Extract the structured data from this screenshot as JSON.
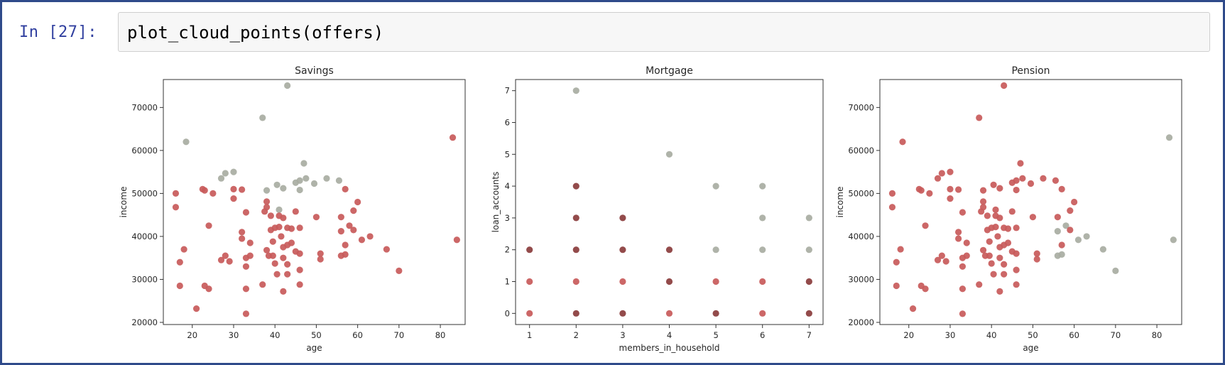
{
  "notebook": {
    "prompt": "In [27]:",
    "code": "plot_cloud_points(offers)"
  },
  "colors": {
    "red": "#c85a5a",
    "gray": "#a8aca2",
    "darkred": "#8a3c3c",
    "prompt_blue": "#303f9f",
    "border": "#2f4a8a"
  },
  "chart_data": [
    {
      "type": "scatter",
      "title": "Savings",
      "xlabel": "age",
      "ylabel": "income",
      "xlim": [
        13,
        86
      ],
      "ylim": [
        19500,
        76500
      ],
      "xticks": [
        20,
        30,
        40,
        50,
        60,
        70,
        80
      ],
      "yticks": [
        20000,
        30000,
        40000,
        50000,
        60000,
        70000
      ],
      "grid": false,
      "series": [
        {
          "color": "#a8aca2",
          "points": [
            [
              18.5,
              62000
            ],
            [
              27,
              53500
            ],
            [
              28,
              54700
            ],
            [
              30,
              55000
            ],
            [
              37,
              67600
            ],
            [
              38,
              50700
            ],
            [
              40.5,
              52000
            ],
            [
              42,
              51200
            ],
            [
              43,
              75100
            ],
            [
              45,
              52500
            ],
            [
              46,
              53000
            ],
            [
              46,
              50800
            ],
            [
              47,
              57000
            ],
            [
              47.5,
              53500
            ],
            [
              49.5,
              52300
            ],
            [
              52.5,
              53500
            ],
            [
              55.5,
              53000
            ],
            [
              41,
              46200
            ]
          ]
        },
        {
          "color": "#c85a5a",
          "points": [
            [
              16,
              50000
            ],
            [
              16,
              46800
            ],
            [
              17,
              34000
            ],
            [
              17,
              28500
            ],
            [
              18,
              37000
            ],
            [
              21,
              23200
            ],
            [
              22.5,
              51000
            ],
            [
              23,
              28500
            ],
            [
              23,
              50700
            ],
            [
              24,
              27800
            ],
            [
              24,
              42500
            ],
            [
              25,
              50000
            ],
            [
              27,
              34500
            ],
            [
              28,
              35500
            ],
            [
              29,
              34200
            ],
            [
              30,
              48800
            ],
            [
              30,
              51000
            ],
            [
              32,
              50900
            ],
            [
              32,
              41000
            ],
            [
              32,
              39500
            ],
            [
              33,
              45600
            ],
            [
              33,
              35000
            ],
            [
              33,
              33000
            ],
            [
              33,
              27800
            ],
            [
              33,
              22000
            ],
            [
              34,
              38500
            ],
            [
              34,
              35500
            ],
            [
              37,
              28800
            ],
            [
              37.5,
              45800
            ],
            [
              38,
              48100
            ],
            [
              38,
              46800
            ],
            [
              38,
              36800
            ],
            [
              38.5,
              35500
            ],
            [
              39,
              44800
            ],
            [
              39,
              41500
            ],
            [
              39.5,
              38800
            ],
            [
              39.5,
              35500
            ],
            [
              40,
              33700
            ],
            [
              40,
              42000
            ],
            [
              40.5,
              31200
            ],
            [
              41,
              42200
            ],
            [
              41,
              44800
            ],
            [
              41.5,
              40000
            ],
            [
              42,
              44300
            ],
            [
              42,
              37500
            ],
            [
              42,
              35000
            ],
            [
              42,
              27200
            ],
            [
              43,
              42000
            ],
            [
              43,
              38000
            ],
            [
              43,
              33500
            ],
            [
              43,
              31200
            ],
            [
              44,
              38500
            ],
            [
              44,
              41800
            ],
            [
              45,
              45800
            ],
            [
              45,
              36500
            ],
            [
              46,
              28800
            ],
            [
              46,
              32200
            ],
            [
              46,
              36000
            ],
            [
              46,
              42000
            ],
            [
              50,
              44500
            ],
            [
              51,
              36000
            ],
            [
              51,
              34700
            ],
            [
              56,
              44500
            ],
            [
              56,
              41200
            ],
            [
              56,
              35500
            ],
            [
              57,
              51000
            ],
            [
              57,
              35800
            ],
            [
              57,
              38000
            ],
            [
              58,
              42500
            ],
            [
              59,
              46000
            ],
            [
              59,
              41500
            ],
            [
              60,
              48000
            ],
            [
              61,
              39200
            ],
            [
              63,
              40000
            ],
            [
              67,
              37000
            ],
            [
              70,
              32000
            ],
            [
              83,
              63000
            ],
            [
              84,
              39200
            ]
          ]
        }
      ]
    },
    {
      "type": "scatter",
      "title": "Mortgage",
      "xlabel": "members_in_household",
      "ylabel": "loan_accounts",
      "xlim": [
        0.7,
        7.3
      ],
      "ylim": [
        -0.35,
        7.35
      ],
      "xticks": [
        1,
        2,
        3,
        4,
        5,
        6,
        7
      ],
      "yticks": [
        0,
        1,
        2,
        3,
        4,
        5,
        6,
        7
      ],
      "grid": false,
      "series": [
        {
          "color": "#a8aca2",
          "points": [
            [
              2,
              7
            ],
            [
              4,
              5
            ],
            [
              5,
              4
            ],
            [
              6,
              4
            ],
            [
              6,
              3
            ],
            [
              7,
              3
            ],
            [
              5,
              2
            ],
            [
              6,
              2
            ],
            [
              7,
              2
            ]
          ]
        },
        {
          "color": "#c85a5a",
          "points": [
            [
              1,
              1
            ],
            [
              1,
              0
            ],
            [
              2,
              1
            ],
            [
              3,
              1
            ],
            [
              4,
              0
            ],
            [
              5,
              1
            ],
            [
              6,
              1
            ],
            [
              6,
              0
            ]
          ]
        },
        {
          "color": "#8a3c3c",
          "points": [
            [
              1,
              2
            ],
            [
              2,
              2
            ],
            [
              2,
              3
            ],
            [
              2,
              4
            ],
            [
              2,
              0
            ],
            [
              3,
              3
            ],
            [
              3,
              2
            ],
            [
              3,
              0
            ],
            [
              4,
              2
            ],
            [
              4,
              1
            ],
            [
              5,
              0
            ],
            [
              7,
              1
            ],
            [
              7,
              0
            ]
          ]
        }
      ]
    },
    {
      "type": "scatter",
      "title": "Pension",
      "xlabel": "age",
      "ylabel": "income",
      "xlim": [
        13,
        86
      ],
      "ylim": [
        19500,
        76500
      ],
      "xticks": [
        20,
        30,
        40,
        50,
        60,
        70,
        80
      ],
      "yticks": [
        20000,
        30000,
        40000,
        50000,
        60000,
        70000
      ],
      "grid": false,
      "series": [
        {
          "color": "#a8aca2",
          "points": [
            [
              56,
              41200
            ],
            [
              56,
              35500
            ],
            [
              57,
              35800
            ],
            [
              58,
              42500
            ],
            [
              61,
              39200
            ],
            [
              63,
              40000
            ],
            [
              67,
              37000
            ],
            [
              70,
              32000
            ],
            [
              83,
              63000
            ],
            [
              84,
              39200
            ]
          ]
        },
        {
          "color": "#c85a5a",
          "points": [
            [
              16,
              50000
            ],
            [
              16,
              46800
            ],
            [
              17,
              34000
            ],
            [
              17,
              28500
            ],
            [
              18,
              37000
            ],
            [
              18.5,
              62000
            ],
            [
              21,
              23200
            ],
            [
              22.5,
              51000
            ],
            [
              23,
              28500
            ],
            [
              23,
              50700
            ],
            [
              24,
              27800
            ],
            [
              24,
              42500
            ],
            [
              25,
              50000
            ],
            [
              27,
              34500
            ],
            [
              27,
              53500
            ],
            [
              28,
              35500
            ],
            [
              28,
              54700
            ],
            [
              29,
              34200
            ],
            [
              30,
              48800
            ],
            [
              30,
              51000
            ],
            [
              30,
              55000
            ],
            [
              32,
              50900
            ],
            [
              32,
              41000
            ],
            [
              32,
              39500
            ],
            [
              33,
              45600
            ],
            [
              33,
              35000
            ],
            [
              33,
              33000
            ],
            [
              33,
              27800
            ],
            [
              33,
              22000
            ],
            [
              34,
              38500
            ],
            [
              34,
              35500
            ],
            [
              37,
              28800
            ],
            [
              37,
              67600
            ],
            [
              37.5,
              45800
            ],
            [
              38,
              48100
            ],
            [
              38,
              46800
            ],
            [
              38,
              36800
            ],
            [
              38,
              50700
            ],
            [
              38.5,
              35500
            ],
            [
              39,
              44800
            ],
            [
              39,
              41500
            ],
            [
              39.5,
              38800
            ],
            [
              39.5,
              35500
            ],
            [
              40,
              33700
            ],
            [
              40,
              42000
            ],
            [
              40.5,
              31200
            ],
            [
              40.5,
              52000
            ],
            [
              41,
              42200
            ],
            [
              41,
              44800
            ],
            [
              41,
              46200
            ],
            [
              41.5,
              40000
            ],
            [
              42,
              44300
            ],
            [
              42,
              37500
            ],
            [
              42,
              35000
            ],
            [
              42,
              27200
            ],
            [
              42,
              51200
            ],
            [
              43,
              42000
            ],
            [
              43,
              38000
            ],
            [
              43,
              33500
            ],
            [
              43,
              31200
            ],
            [
              43,
              75100
            ],
            [
              44,
              38500
            ],
            [
              44,
              41800
            ],
            [
              45,
              45800
            ],
            [
              45,
              36500
            ],
            [
              45,
              52500
            ],
            [
              46,
              28800
            ],
            [
              46,
              32200
            ],
            [
              46,
              36000
            ],
            [
              46,
              42000
            ],
            [
              46,
              53000
            ],
            [
              46,
              50800
            ],
            [
              47,
              57000
            ],
            [
              47.5,
              53500
            ],
            [
              49.5,
              52300
            ],
            [
              50,
              44500
            ],
            [
              51,
              36000
            ],
            [
              51,
              34700
            ],
            [
              52.5,
              53500
            ],
            [
              55.5,
              53000
            ],
            [
              56,
              44500
            ],
            [
              57,
              51000
            ],
            [
              57,
              38000
            ],
            [
              59,
              46000
            ],
            [
              59,
              41500
            ],
            [
              60,
              48000
            ]
          ]
        }
      ]
    }
  ]
}
